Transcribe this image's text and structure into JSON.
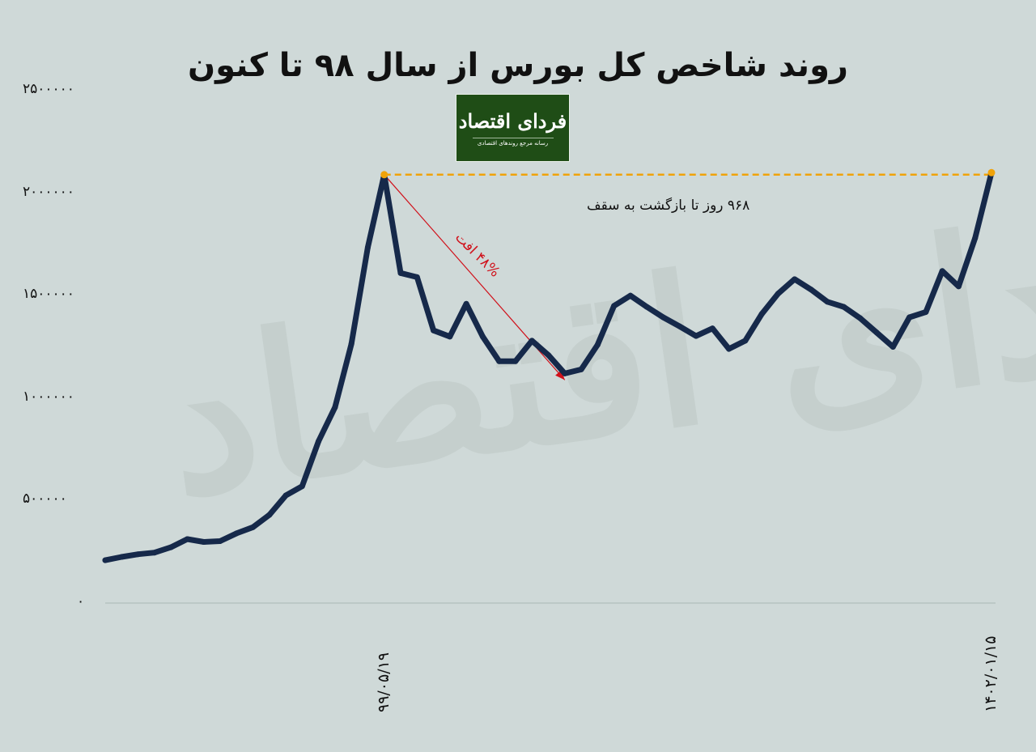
{
  "chart_data": {
    "type": "line",
    "title": "روند شاخص کل بورس از سال ۹۸ تا کنون",
    "xlabel": "",
    "ylabel": "",
    "ylim": [
      0,
      2500000
    ],
    "yticks": [
      0,
      500000,
      1000000,
      1500000,
      2000000,
      2500000
    ],
    "ytick_labels": [
      "۰",
      "۵۰۰۰۰۰",
      "۱۰۰۰۰۰۰",
      "۱۵۰۰۰۰۰",
      "۲۰۰۰۰۰۰",
      "۲۵۰۰۰۰۰"
    ],
    "xtick_labels": [
      {
        "label": "۹۹/۰۵/۱۹",
        "index": 17
      },
      {
        "label": "۱۴۰۲/۰۱/۱۵",
        "index": 54
      }
    ],
    "grid": false,
    "series": [
      {
        "color": "#16294a",
        "values": [
          209000,
          225000,
          238000,
          246000,
          272000,
          312000,
          298000,
          302000,
          340000,
          370000,
          430000,
          525000,
          570000,
          790000,
          955000,
          1265000,
          1735000,
          2090000,
          1610000,
          1590000,
          1330000,
          1300000,
          1460000,
          1300000,
          1180000,
          1180000,
          1280000,
          1210000,
          1120000,
          1140000,
          1260000,
          1450000,
          1500000,
          1445000,
          1394000,
          1350000,
          1303000,
          1340000,
          1240000,
          1280000,
          1410000,
          1510000,
          1580000,
          1530000,
          1470000,
          1445000,
          1390000,
          1320000,
          1250000,
          1394000,
          1420000,
          1620000,
          1545000,
          1780000,
          2100000
        ]
      }
    ],
    "annotations": {
      "ceiling_line": {
        "from_index": 17,
        "to_index": 54,
        "color": "#f0a30a",
        "style": "dashed"
      },
      "ceiling_text": "۹۶۸ روز تا بازگشت به سقف",
      "drop_arrow": {
        "from_index": 17,
        "to_index": 28,
        "color": "#d0101a"
      },
      "drop_text": "۴۸% افت"
    }
  },
  "logo": {
    "name": "فردای اقتصاد",
    "tagline": "رسانه مرجع روندهای اقتصادی",
    "color": "#1f4d16"
  },
  "colors": {
    "background": "#cfd9d8",
    "line": "#16294a",
    "ceiling": "#f0a30a",
    "drop": "#d0101a"
  }
}
